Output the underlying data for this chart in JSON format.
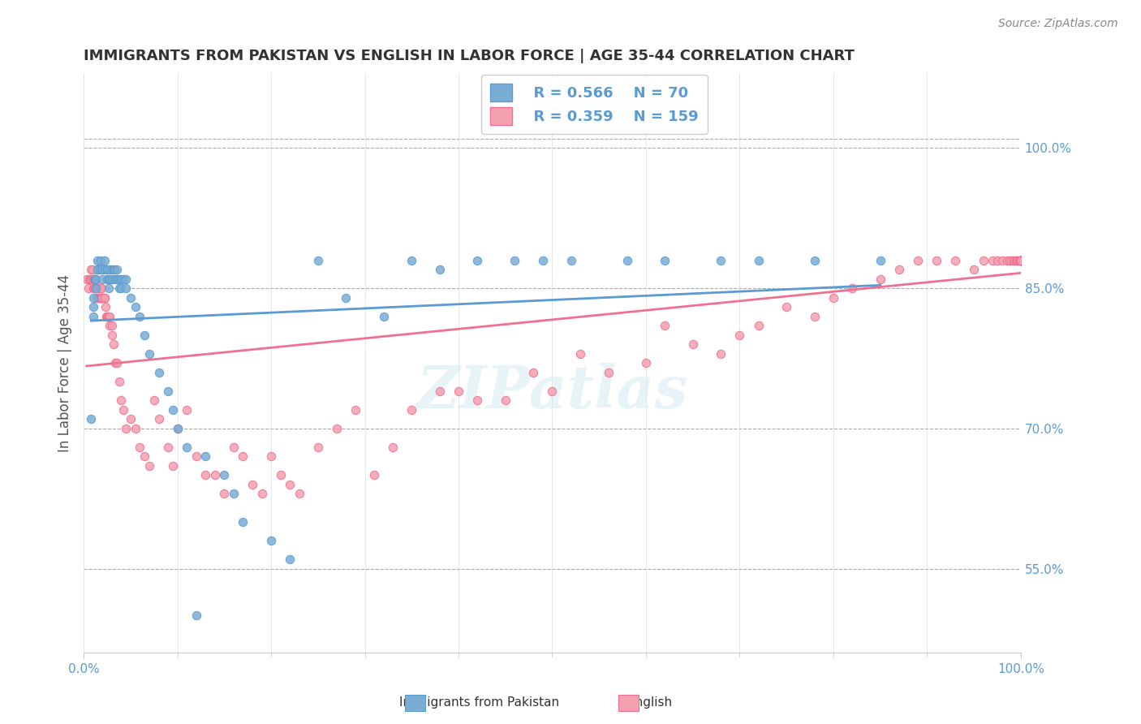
{
  "title": "IMMIGRANTS FROM PAKISTAN VS ENGLISH IN LABOR FORCE | AGE 35-44 CORRELATION CHART",
  "source_text": "Source: ZipAtlas.com",
  "xlabel": "",
  "ylabel": "In Labor Force | Age 35-44",
  "xlim": [
    0.0,
    1.0
  ],
  "ylim": [
    0.46,
    1.08
  ],
  "right_ytick_labels": [
    "55.0%",
    "70.0%",
    "85.0%",
    "100.0%"
  ],
  "right_ytick_values": [
    0.55,
    0.7,
    0.85,
    1.0
  ],
  "xticklabels": [
    "0.0%",
    "100.0%"
  ],
  "xtick_values": [
    0.0,
    1.0
  ],
  "legend_r_blue": "R = 0.566",
  "legend_n_blue": "N = 70",
  "legend_r_pink": "R = 0.359",
  "legend_n_pink": "N = 159",
  "blue_color": "#7aadd4",
  "pink_color": "#f4a0b0",
  "blue_line_color": "#5b9bd5",
  "pink_line_color": "#f07090",
  "watermark": "ZIPatlas",
  "blue_scatter_x": [
    0.008,
    0.01,
    0.01,
    0.01,
    0.012,
    0.013,
    0.013,
    0.015,
    0.015,
    0.015,
    0.018,
    0.018,
    0.02,
    0.02,
    0.022,
    0.022,
    0.025,
    0.025,
    0.025,
    0.027,
    0.027,
    0.028,
    0.028,
    0.03,
    0.03,
    0.032,
    0.033,
    0.033,
    0.035,
    0.035,
    0.035,
    0.038,
    0.038,
    0.04,
    0.04,
    0.042,
    0.045,
    0.045,
    0.05,
    0.055,
    0.06,
    0.065,
    0.07,
    0.08,
    0.09,
    0.095,
    0.1,
    0.11,
    0.12,
    0.13,
    0.15,
    0.16,
    0.17,
    0.2,
    0.22,
    0.25,
    0.28,
    0.32,
    0.35,
    0.38,
    0.42,
    0.46,
    0.49,
    0.52,
    0.58,
    0.62,
    0.68,
    0.72,
    0.78,
    0.85
  ],
  "blue_scatter_y": [
    0.71,
    0.82,
    0.83,
    0.84,
    0.86,
    0.85,
    0.86,
    0.87,
    0.88,
    0.87,
    0.87,
    0.88,
    0.86,
    0.87,
    0.87,
    0.88,
    0.86,
    0.87,
    0.87,
    0.85,
    0.86,
    0.86,
    0.87,
    0.86,
    0.87,
    0.87,
    0.86,
    0.87,
    0.86,
    0.86,
    0.87,
    0.85,
    0.86,
    0.85,
    0.86,
    0.86,
    0.85,
    0.86,
    0.84,
    0.83,
    0.82,
    0.8,
    0.78,
    0.76,
    0.74,
    0.72,
    0.7,
    0.68,
    0.5,
    0.67,
    0.65,
    0.63,
    0.6,
    0.58,
    0.56,
    0.88,
    0.84,
    0.82,
    0.88,
    0.87,
    0.88,
    0.88,
    0.88,
    0.88,
    0.88,
    0.88,
    0.88,
    0.88,
    0.88,
    0.88
  ],
  "pink_scatter_x": [
    0.003,
    0.005,
    0.006,
    0.007,
    0.008,
    0.008,
    0.009,
    0.009,
    0.01,
    0.01,
    0.011,
    0.011,
    0.012,
    0.012,
    0.013,
    0.013,
    0.014,
    0.014,
    0.015,
    0.015,
    0.016,
    0.016,
    0.017,
    0.017,
    0.018,
    0.018,
    0.019,
    0.019,
    0.02,
    0.02,
    0.022,
    0.022,
    0.023,
    0.024,
    0.025,
    0.025,
    0.026,
    0.027,
    0.028,
    0.028,
    0.03,
    0.03,
    0.032,
    0.034,
    0.035,
    0.038,
    0.04,
    0.042,
    0.045,
    0.05,
    0.055,
    0.06,
    0.065,
    0.07,
    0.075,
    0.08,
    0.09,
    0.095,
    0.1,
    0.11,
    0.12,
    0.13,
    0.14,
    0.15,
    0.16,
    0.17,
    0.18,
    0.19,
    0.2,
    0.21,
    0.22,
    0.23,
    0.25,
    0.27,
    0.29,
    0.31,
    0.33,
    0.35,
    0.38,
    0.4,
    0.42,
    0.45,
    0.48,
    0.5,
    0.53,
    0.56,
    0.6,
    0.62,
    0.65,
    0.68,
    0.7,
    0.72,
    0.75,
    0.78,
    0.8,
    0.82,
    0.85,
    0.87,
    0.89,
    0.91,
    0.93,
    0.95,
    0.96,
    0.97,
    0.975,
    0.98,
    0.985,
    0.988,
    0.99,
    0.992,
    0.993,
    0.995,
    0.996,
    0.997,
    0.998,
    0.999,
    1.0,
    1.0,
    1.0,
    1.0,
    1.0,
    1.0,
    1.0,
    1.0,
    1.0,
    1.0,
    1.0,
    1.0,
    1.0,
    1.0,
    1.0,
    1.0,
    1.0,
    1.0,
    1.0,
    1.0,
    1.0,
    1.0,
    1.0,
    1.0,
    1.0,
    1.0,
    1.0,
    1.0,
    1.0,
    1.0,
    1.0,
    1.0,
    1.0,
    1.0,
    1.0,
    1.0,
    1.0,
    1.0,
    1.0,
    1.0,
    1.0,
    1.0,
    1.0,
    1.0,
    1.0,
    1.0
  ],
  "pink_scatter_y": [
    0.86,
    0.85,
    0.86,
    0.86,
    0.86,
    0.87,
    0.86,
    0.87,
    0.85,
    0.86,
    0.85,
    0.86,
    0.85,
    0.86,
    0.85,
    0.86,
    0.84,
    0.85,
    0.84,
    0.85,
    0.84,
    0.85,
    0.84,
    0.85,
    0.84,
    0.85,
    0.84,
    0.85,
    0.84,
    0.84,
    0.84,
    0.84,
    0.83,
    0.82,
    0.82,
    0.82,
    0.82,
    0.82,
    0.81,
    0.82,
    0.8,
    0.81,
    0.79,
    0.77,
    0.77,
    0.75,
    0.73,
    0.72,
    0.7,
    0.71,
    0.7,
    0.68,
    0.67,
    0.66,
    0.73,
    0.71,
    0.68,
    0.66,
    0.7,
    0.72,
    0.67,
    0.65,
    0.65,
    0.63,
    0.68,
    0.67,
    0.64,
    0.63,
    0.67,
    0.65,
    0.64,
    0.63,
    0.68,
    0.7,
    0.72,
    0.65,
    0.68,
    0.72,
    0.74,
    0.74,
    0.73,
    0.73,
    0.76,
    0.74,
    0.78,
    0.76,
    0.77,
    0.81,
    0.79,
    0.78,
    0.8,
    0.81,
    0.83,
    0.82,
    0.84,
    0.85,
    0.86,
    0.87,
    0.88,
    0.88,
    0.88,
    0.87,
    0.88,
    0.88,
    0.88,
    0.88,
    0.88,
    0.88,
    0.88,
    0.88,
    0.88,
    0.88,
    0.88,
    0.88,
    0.88,
    0.88,
    0.88,
    0.88,
    0.88,
    0.88,
    0.88,
    0.88,
    0.88,
    0.88,
    0.88,
    0.88,
    0.88,
    0.88,
    0.88,
    0.88,
    0.88,
    0.88,
    0.88,
    0.88,
    0.88,
    0.88,
    0.88,
    0.88,
    0.88,
    0.88,
    0.88,
    0.88,
    0.88,
    0.88,
    0.88,
    0.88,
    0.88,
    0.88,
    0.88,
    0.88,
    0.88,
    0.88,
    0.88,
    0.88,
    0.88,
    0.88,
    0.88,
    0.88,
    0.88,
    0.88,
    0.88,
    0.88
  ]
}
